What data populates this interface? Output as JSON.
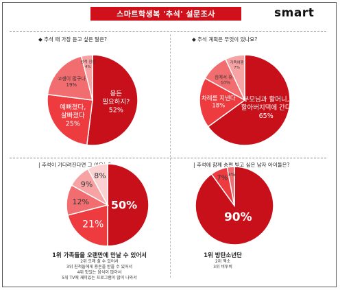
{
  "header": {
    "banner_title": "스마트학생복 '추석' 설문조사",
    "logo_text": "smart"
  },
  "colors": {
    "brand_red": "#d0111b",
    "slice_1": "#c8101a",
    "slice_2": "#ee3b3f",
    "slice_3": "#f26d6f",
    "slice_4": "#f7a3a4",
    "slice_5": "#fbd1d1"
  },
  "chart_data": [
    {
      "type": "pie",
      "title": "◆ 추석 때 가장 듣고 싶은 말은?",
      "slices": [
        {
          "label": "용돈\n필요하지?",
          "pct_label": "52%",
          "value": 52
        },
        {
          "label": "예뻐졌다,\n살빠졌다",
          "pct_label": "25%",
          "value": 25
        },
        {
          "label": "고생이 많구나",
          "pct_label": "19%",
          "value": 19
        },
        {
          "label": "성적 칭찬",
          "pct_label": "4%",
          "value": 4
        }
      ]
    },
    {
      "type": "pie",
      "title": "◆ 추석 계획은 무엇이 있나요?",
      "slices": [
        {
          "label": "부모님과 할머니,\n할아버지댁에 간다",
          "pct_label": "65%",
          "value": 65
        },
        {
          "label": "차례를 지낸다",
          "pct_label": "18%",
          "value": 18
        },
        {
          "label": "집에서 휴식",
          "pct_label": "10%",
          "value": 10
        },
        {
          "label": "가족여행",
          "pct_label": "7%",
          "value": 7
        }
      ]
    },
    {
      "type": "pie",
      "title": "| 추석이 기다려진다면 그 이유는?",
      "slices": [
        {
          "label": "",
          "pct_label": "50%",
          "value": 50
        },
        {
          "label": "",
          "pct_label": "21%",
          "value": 21
        },
        {
          "label": "",
          "pct_label": "12%",
          "value": 12
        },
        {
          "label": "",
          "pct_label": "9%",
          "value": 9
        },
        {
          "label": "",
          "pct_label": "8%",
          "value": 8
        }
      ],
      "ranking": {
        "first": "1위 가족들을 오랜만에 만날 수 있어서",
        "others": [
          "2위 오래 쉴 수 있어서",
          "3위 친척들에게 용돈을 받을 수 있어서",
          "4위 맛있는 음식이 많아서",
          "5위 TV에 재미있는 프로그램이 많이 나와서"
        ]
      }
    },
    {
      "type": "pie",
      "title": "| 추석에 함께 송편 빚고 싶은 남자 아이돌은?",
      "slices": [
        {
          "label": "",
          "pct_label": "90%",
          "value": 90
        },
        {
          "label": "",
          "pct_label": "7%",
          "value": 7
        },
        {
          "label": "",
          "pct_label": "3%",
          "value": 3
        }
      ],
      "ranking": {
        "first": "1위 방탄소년단",
        "others": [
          "2위 엑소",
          "3위 비투비"
        ]
      }
    }
  ]
}
